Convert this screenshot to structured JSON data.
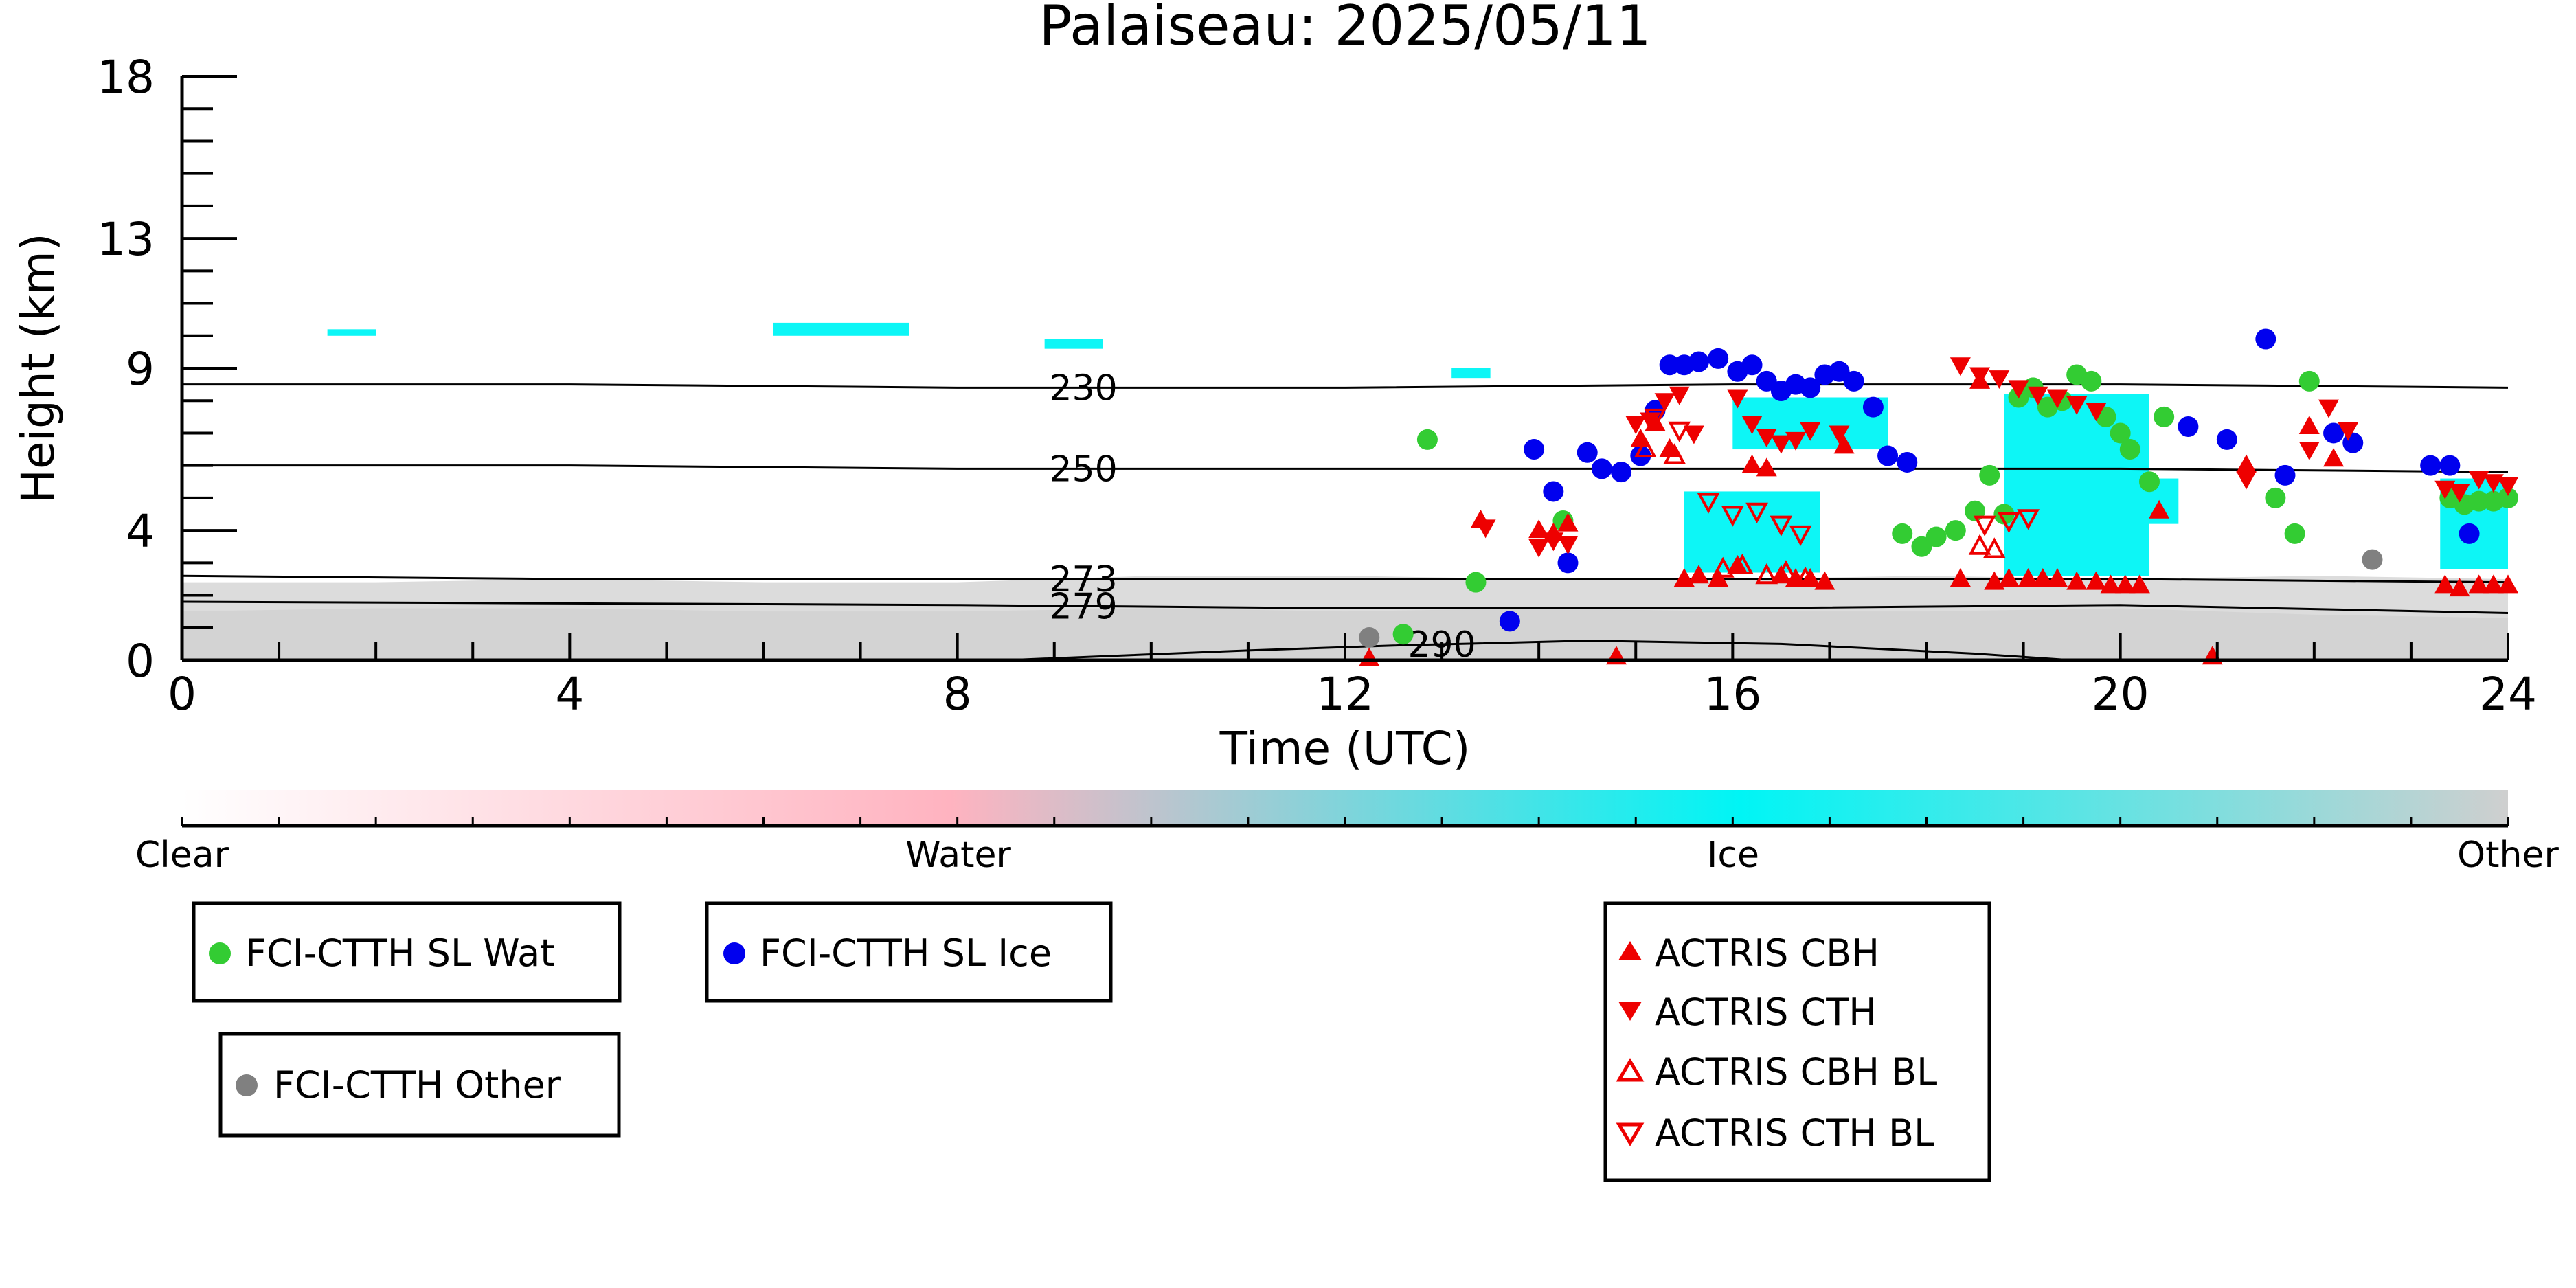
{
  "chart_data": {
    "type": "scatter",
    "title": "Palaiseau: 2025/05/11",
    "xlabel": "Time (UTC)",
    "ylabel": "Height (km)",
    "xlim": [
      0,
      24
    ],
    "ylim": [
      0,
      18
    ],
    "x_ticks": [
      0,
      4,
      8,
      12,
      16,
      20,
      24
    ],
    "y_ticks": [
      0,
      4,
      9,
      13,
      18
    ],
    "colorbar": {
      "labels": [
        "Clear",
        "Water",
        "Ice",
        "Other"
      ],
      "gradient_colors": [
        "#ffffff",
        "#ffb3c0",
        "#00f5f5",
        "#cfcfcf"
      ]
    },
    "background_layers": [
      {
        "name": "Other",
        "color": "#d3d3d3",
        "top_km": [
          1.5,
          1.6,
          1.6,
          1.5,
          1.5,
          1.6,
          1.5,
          1.6,
          1.5,
          1.5,
          1.6,
          1.4,
          1.3
        ],
        "x": [
          0,
          2,
          4,
          6,
          8,
          10,
          12,
          14,
          16,
          18,
          20,
          22,
          24
        ]
      },
      {
        "name": "Other (speckled)",
        "color": "#dcdcdc",
        "top_km": [
          2.4,
          2.4,
          2.5,
          2.4,
          2.4,
          2.6,
          2.6,
          2.5,
          2.5,
          2.6,
          2.5,
          2.6,
          2.5
        ],
        "x": [
          0,
          2,
          4,
          6,
          8,
          10,
          12,
          14,
          16,
          18,
          20,
          22,
          24
        ]
      }
    ],
    "ice_regions": [
      {
        "x0": 1.5,
        "x1": 2.0,
        "y0": 10.0,
        "y1": 10.2
      },
      {
        "x0": 6.1,
        "x1": 7.5,
        "y0": 10.0,
        "y1": 10.4
      },
      {
        "x0": 8.9,
        "x1": 9.5,
        "y0": 9.6,
        "y1": 9.9
      },
      {
        "x0": 13.1,
        "x1": 13.5,
        "y0": 8.7,
        "y1": 9.0
      },
      {
        "x0": 15.5,
        "x1": 16.9,
        "y0": 2.7,
        "y1": 5.2
      },
      {
        "x0": 16.0,
        "x1": 17.6,
        "y0": 6.5,
        "y1": 8.1
      },
      {
        "x0": 18.8,
        "x1": 20.3,
        "y0": 2.6,
        "y1": 8.2
      },
      {
        "x0": 20.3,
        "x1": 20.6,
        "y0": 4.2,
        "y1": 5.6
      },
      {
        "x0": 23.3,
        "x1": 24.0,
        "y0": 2.8,
        "y1": 5.6
      }
    ],
    "temperature_contours": [
      {
        "label": "230",
        "points": [
          [
            0,
            8.5
          ],
          [
            4,
            8.5
          ],
          [
            8,
            8.4
          ],
          [
            12,
            8.4
          ],
          [
            16,
            8.5
          ],
          [
            20,
            8.5
          ],
          [
            24,
            8.4
          ]
        ],
        "label_at": 9.3
      },
      {
        "label": "250",
        "points": [
          [
            0,
            6.0
          ],
          [
            4,
            6.0
          ],
          [
            8,
            5.9
          ],
          [
            12,
            5.9
          ],
          [
            16,
            5.9
          ],
          [
            20,
            5.9
          ],
          [
            24,
            5.8
          ]
        ],
        "label_at": 9.3
      },
      {
        "label": "273",
        "points": [
          [
            0,
            2.6
          ],
          [
            4,
            2.5
          ],
          [
            8,
            2.5
          ],
          [
            12,
            2.5
          ],
          [
            16,
            2.5
          ],
          [
            20,
            2.5
          ],
          [
            24,
            2.4
          ]
        ],
        "label_at": 9.3
      },
      {
        "label": "279",
        "points": [
          [
            0,
            1.8
          ],
          [
            4,
            1.75
          ],
          [
            8,
            1.7
          ],
          [
            12,
            1.6
          ],
          [
            16,
            1.6
          ],
          [
            20,
            1.7
          ],
          [
            24,
            1.45
          ]
        ],
        "label_at": 9.3
      },
      {
        "label": "290",
        "points": [
          [
            8.5,
            0.0
          ],
          [
            11,
            0.3
          ],
          [
            12.5,
            0.45
          ],
          [
            14.5,
            0.6
          ],
          [
            16.5,
            0.5
          ],
          [
            18.5,
            0.2
          ],
          [
            19.5,
            0.0
          ]
        ],
        "label_at": 13.0
      }
    ],
    "legend": [
      {
        "name": "FCI-CTTH SL Wat",
        "marker": "circle",
        "color": "#33cc33"
      },
      {
        "name": "FCI-CTTH SL Ice",
        "marker": "circle",
        "color": "#0000ee"
      },
      {
        "name": "FCI-CTTH Other",
        "marker": "circle",
        "color": "#808080"
      },
      {
        "name": "ACTRIS CBH",
        "marker": "triangle-up",
        "color": "#ee0000"
      },
      {
        "name": "ACTRIS CTH",
        "marker": "triangle-down",
        "color": "#ee0000"
      },
      {
        "name": "ACTRIS CBH BL",
        "marker": "triangle-up-open",
        "color": "#ee0000"
      },
      {
        "name": "ACTRIS CTH BL",
        "marker": "triangle-down-open",
        "color": "#ee0000"
      }
    ],
    "series": [
      {
        "name": "FCI-CTTH SL Wat",
        "marker": "circle",
        "color": "#33cc33",
        "x": [
          12.6,
          12.85,
          13.35,
          14.25,
          17.75,
          17.95,
          18.1,
          18.3,
          18.5,
          18.65,
          18.8,
          18.95,
          19.1,
          19.25,
          19.4,
          19.55,
          19.7,
          19.85,
          20.0,
          20.1,
          20.3,
          20.45,
          21.6,
          21.8,
          21.95,
          23.4,
          23.55,
          23.7,
          23.85,
          24.0
        ],
        "y": [
          0.8,
          6.8,
          2.4,
          4.3,
          3.9,
          3.5,
          3.8,
          4.0,
          4.6,
          5.7,
          4.5,
          8.1,
          8.4,
          7.8,
          8.0,
          8.8,
          8.6,
          7.5,
          7.0,
          6.5,
          5.5,
          7.5,
          5.0,
          3.9,
          8.6,
          5.0,
          4.8,
          4.9,
          4.9,
          5.0
        ]
      },
      {
        "name": "FCI-CTTH SL Ice",
        "marker": "circle",
        "color": "#0000ee",
        "x": [
          13.7,
          13.95,
          14.15,
          14.3,
          14.5,
          14.65,
          14.85,
          15.05,
          15.2,
          15.35,
          15.5,
          15.65,
          15.85,
          16.05,
          16.2,
          16.35,
          16.5,
          16.65,
          16.8,
          16.95,
          17.1,
          17.25,
          17.45,
          17.6,
          17.8,
          20.7,
          21.1,
          21.5,
          21.7,
          22.2,
          22.4,
          23.2,
          23.4,
          23.6
        ],
        "y": [
          1.2,
          6.5,
          5.2,
          3.0,
          6.4,
          5.9,
          5.8,
          6.3,
          7.7,
          9.1,
          9.1,
          9.2,
          9.3,
          8.9,
          9.1,
          8.6,
          8.3,
          8.5,
          8.4,
          8.8,
          8.9,
          8.6,
          7.8,
          6.3,
          6.1,
          7.2,
          6.8,
          9.9,
          5.7,
          7.0,
          6.7,
          6.0,
          6.0,
          3.9
        ]
      },
      {
        "name": "FCI-CTTH Other",
        "marker": "circle",
        "color": "#808080",
        "x": [
          12.25,
          22.6
        ],
        "y": [
          0.7,
          3.1
        ]
      },
      {
        "name": "ACTRIS CBH",
        "marker": "triangle-up",
        "color": "#ee0000",
        "x": [
          12.25,
          13.4,
          14.0,
          14.15,
          14.3,
          14.8,
          15.05,
          15.2,
          15.35,
          15.5,
          15.65,
          15.85,
          16.05,
          16.2,
          16.35,
          16.5,
          16.65,
          16.8,
          16.95,
          17.15,
          18.35,
          18.55,
          18.7,
          18.85,
          19.05,
          19.2,
          19.35,
          19.55,
          19.75,
          19.9,
          20.05,
          20.2,
          20.4,
          20.95,
          21.3,
          21.95,
          22.2,
          23.35,
          23.5,
          23.7,
          23.85,
          24.0
        ],
        "y": [
          0.05,
          4.3,
          4.0,
          3.9,
          4.2,
          0.1,
          6.8,
          7.3,
          6.5,
          2.5,
          2.6,
          2.5,
          2.9,
          6.0,
          5.9,
          2.6,
          2.5,
          2.5,
          2.4,
          6.6,
          2.5,
          8.6,
          2.4,
          2.5,
          2.5,
          2.5,
          2.5,
          2.4,
          2.4,
          2.3,
          2.3,
          2.3,
          4.6,
          0.1,
          6.0,
          7.2,
          6.2,
          2.3,
          2.2,
          2.3,
          2.3,
          2.3
        ]
      },
      {
        "name": "ACTRIS CTH",
        "marker": "triangle-down",
        "color": "#ee0000",
        "x": [
          13.45,
          14.0,
          14.15,
          14.3,
          15.0,
          15.15,
          15.3,
          15.45,
          15.6,
          16.05,
          16.2,
          16.35,
          16.5,
          16.65,
          16.8,
          17.1,
          18.35,
          18.55,
          18.75,
          18.95,
          19.15,
          19.35,
          19.55,
          19.75,
          21.3,
          21.95,
          22.15,
          22.35,
          23.35,
          23.5,
          23.7,
          23.85,
          24.0
        ],
        "y": [
          4.1,
          3.5,
          3.7,
          3.6,
          7.3,
          7.4,
          8.0,
          8.2,
          7.0,
          8.1,
          7.3,
          6.9,
          6.7,
          6.8,
          7.1,
          7.0,
          9.1,
          8.8,
          8.7,
          8.4,
          8.2,
          8.1,
          7.9,
          7.7,
          5.6,
          6.5,
          7.8,
          7.1,
          5.3,
          5.2,
          5.6,
          5.5,
          5.4
        ]
      },
      {
        "name": "ACTRIS CBH BL",
        "marker": "triangle-up-open",
        "color": "#ee0000",
        "x": [
          15.1,
          15.4,
          15.9,
          16.1,
          16.35,
          16.55,
          16.75,
          18.55,
          18.7
        ],
        "y": [
          6.5,
          6.3,
          2.8,
          2.9,
          2.6,
          2.7,
          2.5,
          3.5,
          3.4
        ]
      },
      {
        "name": "ACTRIS CTH BL",
        "marker": "triangle-down-open",
        "color": "#ee0000",
        "x": [
          15.2,
          15.45,
          15.75,
          16.0,
          16.25,
          16.5,
          16.7,
          18.6,
          18.85,
          19.05
        ],
        "y": [
          7.5,
          7.1,
          4.9,
          4.5,
          4.6,
          4.2,
          3.9,
          4.2,
          4.3,
          4.4
        ]
      }
    ]
  }
}
